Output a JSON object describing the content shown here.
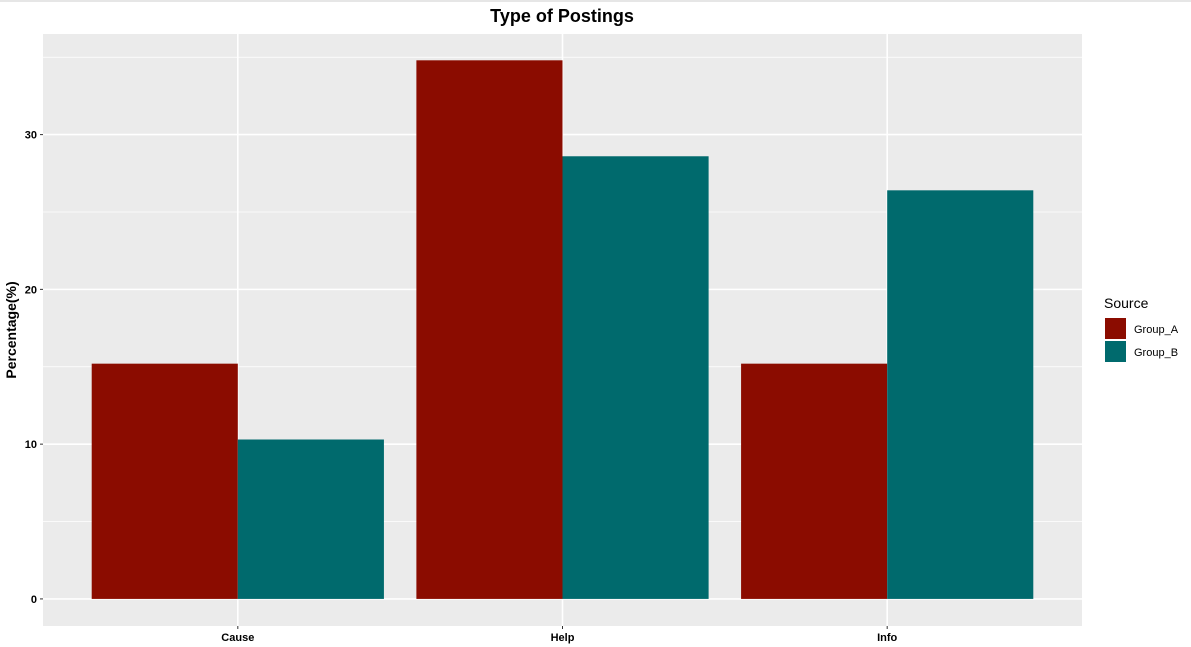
{
  "chart_data": {
    "type": "bar",
    "title": "Type of Postings",
    "xlabel": "",
    "ylabel": "Percentage(%)",
    "categories": [
      "Cause",
      "Help",
      "Info"
    ],
    "series": [
      {
        "name": "Group_A",
        "color": "#8b0c00",
        "values": [
          15.2,
          34.8,
          15.2
        ]
      },
      {
        "name": "Group_B",
        "color": "#006a6d",
        "values": [
          10.3,
          28.6,
          26.4
        ]
      }
    ],
    "ylim": [
      -1.75,
      36.5
    ],
    "yticks": [
      0,
      10,
      20,
      30
    ],
    "ytick_labels": [
      "0",
      "10",
      "20",
      "30"
    ],
    "grid": true,
    "legend": {
      "title": "Source",
      "placement": "right"
    },
    "panel_background": "#ebebeb",
    "gridline_color": "#ffffff"
  }
}
